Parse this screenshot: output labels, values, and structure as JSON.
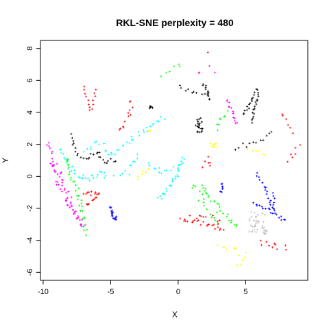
{
  "chart_data": {
    "type": "scatter",
    "title": "RKL-SNE perplexity = 480",
    "xlabel": "X",
    "ylabel": "Y",
    "xlim": [
      -10.2,
      9.6
    ],
    "ylim": [
      -6.5,
      8.5
    ],
    "xticks": [
      -10,
      -5,
      0,
      5
    ],
    "yticks": [
      -6,
      -4,
      -2,
      0,
      2,
      4,
      6,
      8
    ],
    "grid": false,
    "legend": "none",
    "point_shape": "plus",
    "clusters": [
      {
        "color": "#000000",
        "kind": "path",
        "pts": [
          [
            -8.0,
            2.6
          ],
          [
            -7.6,
            1.6
          ],
          [
            -7.2,
            1.2
          ],
          [
            -6.8,
            1.0
          ],
          [
            -6.4,
            1.2
          ],
          [
            -6.0,
            1.6
          ],
          [
            -5.7,
            1.2
          ],
          [
            -5.4,
            0.8
          ],
          [
            -5.0,
            1.0
          ],
          [
            -4.6,
            0.9
          ]
        ],
        "n": 28,
        "jitter": 0.08
      },
      {
        "color": "#000000",
        "kind": "path",
        "pts": [
          [
            0.0,
            5.6
          ],
          [
            0.4,
            5.4
          ],
          [
            1.2,
            5.3
          ],
          [
            2.2,
            5.1
          ]
        ],
        "n": 10,
        "jitter": 0.08
      },
      {
        "color": "#000000",
        "kind": "path",
        "pts": [
          [
            1.8,
            5.8
          ],
          [
            2.0,
            5.6
          ],
          [
            2.2,
            5.2
          ],
          [
            2.4,
            4.8
          ]
        ],
        "n": 12,
        "jitter": 0.05
      },
      {
        "color": "#000000",
        "kind": "blob",
        "center": [
          1.6,
          3.1
        ],
        "spread": [
          0.15,
          0.25
        ],
        "n": 22
      },
      {
        "color": "#000000",
        "kind": "blob",
        "center": [
          -2.1,
          4.3
        ],
        "spread": [
          0.1,
          0.05
        ],
        "n": 6
      },
      {
        "color": "#000000",
        "kind": "path",
        "pts": [
          [
            4.8,
            3.9
          ],
          [
            5.2,
            4.4
          ],
          [
            5.5,
            4.9
          ],
          [
            5.7,
            5.2
          ]
        ],
        "n": 14,
        "jitter": 0.05
      },
      {
        "color": "#000000",
        "kind": "path",
        "pts": [
          [
            5.5,
            3.4
          ],
          [
            5.6,
            4.0
          ],
          [
            5.8,
            4.6
          ],
          [
            5.9,
            5.1
          ],
          [
            5.9,
            5.5
          ]
        ],
        "n": 18,
        "jitter": 0.04
      },
      {
        "color": "#000000",
        "kind": "path",
        "pts": [
          [
            4.2,
            1.8
          ],
          [
            5.0,
            1.9
          ],
          [
            5.6,
            2.0
          ],
          [
            6.6,
            2.5
          ],
          [
            7.0,
            2.8
          ]
        ],
        "n": 12,
        "jitter": 0.08
      },
      {
        "color": "#00FFFF",
        "kind": "path",
        "pts": [
          [
            -8.8,
            1.7
          ],
          [
            -8.2,
            0.9
          ],
          [
            -7.8,
            0.4
          ],
          [
            -7.4,
            0.0
          ],
          [
            -7.0,
            -0.1
          ],
          [
            -6.5,
            0.0
          ],
          [
            -6.0,
            0.0
          ],
          [
            -5.6,
            0.2
          ],
          [
            -5.2,
            -0.1
          ]
        ],
        "n": 34,
        "jitter": 0.1
      },
      {
        "color": "#00FFFF",
        "kind": "path",
        "pts": [
          [
            -6.8,
            1.6
          ],
          [
            -6.4,
            1.9
          ],
          [
            -6.0,
            2.0
          ],
          [
            -5.4,
            1.7
          ],
          [
            -4.8,
            1.3
          ],
          [
            -4.2,
            1.7
          ],
          [
            -3.6,
            2.2
          ],
          [
            -3.0,
            2.6
          ],
          [
            -2.4,
            3.0
          ],
          [
            -1.6,
            3.4
          ],
          [
            -1.0,
            3.6
          ]
        ],
        "n": 36,
        "jitter": 0.1
      },
      {
        "color": "#00FFFF",
        "kind": "path",
        "pts": [
          [
            -4.4,
            0.0
          ],
          [
            -3.8,
            0.4
          ],
          [
            -3.2,
            0.8
          ],
          [
            -2.8,
            1.0
          ]
        ],
        "n": 10,
        "jitter": 0.15
      },
      {
        "color": "#00FFFF",
        "kind": "path",
        "pts": [
          [
            -1.4,
            -1.4
          ],
          [
            -0.8,
            -0.8
          ],
          [
            -0.3,
            -0.2
          ],
          [
            0.0,
            0.3
          ],
          [
            0.2,
            0.8
          ],
          [
            0.4,
            1.1
          ]
        ],
        "n": 26,
        "jitter": 0.08
      },
      {
        "color": "#00FFFF",
        "kind": "path",
        "pts": [
          [
            -2.2,
            0.8
          ],
          [
            -1.6,
            0.3
          ],
          [
            -1.0,
            0.3
          ],
          [
            -0.4,
            0.6
          ],
          [
            0.2,
            0.8
          ]
        ],
        "n": 14,
        "jitter": 0.1
      },
      {
        "color": "#FF00FF",
        "kind": "path",
        "pts": [
          [
            -9.6,
            2.1
          ],
          [
            -9.2,
            0.6
          ],
          [
            -8.8,
            -0.6
          ],
          [
            -8.4,
            -1.4
          ],
          [
            -7.9,
            -2.1
          ],
          [
            -7.4,
            -2.7
          ],
          [
            -7.0,
            -3.1
          ]
        ],
        "n": 40,
        "jitter": 0.1
      },
      {
        "color": "#FF00FF",
        "kind": "path",
        "pts": [
          [
            -9.2,
            0.9
          ],
          [
            -8.8,
            0.1
          ],
          [
            -8.4,
            -0.8
          ],
          [
            -8.0,
            -1.6
          ],
          [
            -7.6,
            -2.4
          ],
          [
            -7.2,
            -3.2
          ]
        ],
        "n": 26,
        "jitter": 0.1
      },
      {
        "color": "#FF00FF",
        "kind": "path",
        "pts": [
          [
            3.6,
            4.8
          ],
          [
            3.9,
            4.3
          ],
          [
            4.1,
            3.8
          ],
          [
            4.3,
            3.2
          ]
        ],
        "n": 14,
        "jitter": 0.06
      },
      {
        "color": "#FF00FF",
        "kind": "blob",
        "center": [
          2.0,
          6.6
        ],
        "spread": [
          0.6,
          0.2
        ],
        "n": 4
      },
      {
        "color": "#00FF00",
        "kind": "path",
        "pts": [
          [
            -8.4,
            1.2
          ],
          [
            -8.0,
            0.2
          ],
          [
            -7.6,
            -0.8
          ],
          [
            -7.3,
            -1.8
          ],
          [
            -7.0,
            -2.6
          ],
          [
            -6.8,
            -3.2
          ],
          [
            -6.7,
            -3.6
          ]
        ],
        "n": 32,
        "jitter": 0.12
      },
      {
        "color": "#00FF00",
        "kind": "path",
        "pts": [
          [
            1.2,
            -0.8
          ],
          [
            1.6,
            -0.6
          ],
          [
            2.1,
            -1.0
          ],
          [
            2.6,
            -1.6
          ],
          [
            3.2,
            -2.2
          ],
          [
            3.8,
            -2.6
          ],
          [
            4.4,
            -3.0
          ]
        ],
        "n": 28,
        "jitter": 0.12
      },
      {
        "color": "#00FF00",
        "kind": "path",
        "pts": [
          [
            1.6,
            -1.0
          ],
          [
            1.9,
            -1.8
          ],
          [
            2.4,
            -2.4
          ],
          [
            3.0,
            -2.8
          ]
        ],
        "n": 12,
        "jitter": 0.1
      },
      {
        "color": "#00FF00",
        "kind": "path",
        "pts": [
          [
            -1.2,
            6.4
          ],
          [
            -0.4,
            6.8
          ],
          [
            0.2,
            7.0
          ]
        ],
        "n": 6,
        "jitter": 0.1
      },
      {
        "color": "#00FF00",
        "kind": "path",
        "pts": [
          [
            2.8,
            3.0
          ],
          [
            3.2,
            3.6
          ],
          [
            3.6,
            4.0
          ]
        ],
        "n": 8,
        "jitter": 0.08
      },
      {
        "color": "#FF0000",
        "kind": "path",
        "pts": [
          [
            -7.0,
            5.6
          ],
          [
            -6.8,
            5.0
          ],
          [
            -6.6,
            4.5
          ],
          [
            -6.5,
            4.1
          ],
          [
            -6.3,
            4.6
          ],
          [
            -6.1,
            5.4
          ]
        ],
        "n": 14,
        "jitter": 0.05
      },
      {
        "color": "#FF0000",
        "kind": "path",
        "pts": [
          [
            -4.4,
            2.8
          ],
          [
            -3.9,
            3.3
          ],
          [
            -3.6,
            4.0
          ],
          [
            -3.5,
            4.8
          ]
        ],
        "n": 12,
        "jitter": 0.08
      },
      {
        "color": "#FF0000",
        "kind": "path",
        "pts": [
          [
            -7.0,
            -1.1
          ],
          [
            -6.6,
            -1.0
          ],
          [
            -6.2,
            -1.1
          ],
          [
            -5.9,
            -1.0
          ],
          [
            -6.2,
            -1.5
          ],
          [
            -6.6,
            -1.7
          ],
          [
            -6.9,
            -1.8
          ]
        ],
        "n": 20,
        "jitter": 0.08
      },
      {
        "color": "#FF0000",
        "kind": "path",
        "pts": [
          [
            0.2,
            -2.7
          ],
          [
            1.0,
            -2.8
          ],
          [
            1.8,
            -2.9
          ],
          [
            2.6,
            -3.1
          ],
          [
            3.4,
            -3.3
          ]
        ],
        "n": 22,
        "jitter": 0.08
      },
      {
        "color": "#FF0000",
        "kind": "path",
        "pts": [
          [
            1.0,
            -2.5
          ],
          [
            1.8,
            -2.4
          ],
          [
            2.6,
            -2.6
          ],
          [
            3.2,
            -3.0
          ]
        ],
        "n": 10,
        "jitter": 0.1
      },
      {
        "color": "#FF0000",
        "kind": "blob",
        "center": [
          2.1,
          0.9
        ],
        "spread": [
          0.12,
          0.25
        ],
        "n": 6
      },
      {
        "color": "#FF0000",
        "kind": "path",
        "pts": [
          [
            6.0,
            -4.1
          ],
          [
            6.6,
            -4.3
          ],
          [
            7.4,
            -4.3
          ],
          [
            8.0,
            -4.5
          ]
        ],
        "n": 10,
        "jitter": 0.15
      },
      {
        "color": "#FF0000",
        "kind": "path",
        "pts": [
          [
            7.6,
            3.9
          ],
          [
            8.1,
            3.3
          ],
          [
            8.6,
            2.8
          ]
        ],
        "n": 6,
        "jitter": 0.1
      },
      {
        "color": "#FF0000",
        "kind": "path",
        "pts": [
          [
            8.2,
            1.0
          ],
          [
            8.6,
            1.5
          ],
          [
            8.9,
            2.0
          ]
        ],
        "n": 6,
        "jitter": 0.1
      },
      {
        "color": "#FF0000",
        "kind": "blob",
        "center": [
          2.2,
          7.7
        ],
        "spread": [
          0.05,
          0.05
        ],
        "n": 1
      },
      {
        "color": "#0000FF",
        "kind": "path",
        "pts": [
          [
            -5.0,
            -1.9
          ],
          [
            -4.9,
            -2.3
          ],
          [
            -4.8,
            -2.6
          ],
          [
            -4.6,
            -2.7
          ],
          [
            -4.6,
            -2.5
          ]
        ],
        "n": 18,
        "jitter": 0.04
      },
      {
        "color": "#0000FF",
        "kind": "path",
        "pts": [
          [
            3.3,
            -0.4
          ],
          [
            3.3,
            -0.7
          ],
          [
            3.2,
            -1.0
          ]
        ],
        "n": 8,
        "jitter": 0.05
      },
      {
        "color": "#0000FF",
        "kind": "path",
        "pts": [
          [
            5.8,
            0.2
          ],
          [
            6.2,
            -0.3
          ],
          [
            6.6,
            -1.0
          ],
          [
            6.9,
            -1.8
          ],
          [
            7.1,
            -2.2
          ]
        ],
        "n": 18,
        "jitter": 0.06
      },
      {
        "color": "#0000FF",
        "kind": "path",
        "pts": [
          [
            5.6,
            -1.7
          ],
          [
            6.1,
            -1.9
          ],
          [
            6.7,
            -2.1
          ],
          [
            7.2,
            -2.4
          ],
          [
            7.6,
            -2.6
          ],
          [
            8.0,
            -2.8
          ]
        ],
        "n": 18,
        "jitter": 0.06
      },
      {
        "color": "#0000FF",
        "kind": "path",
        "pts": [
          [
            7.0,
            -1.0
          ],
          [
            7.1,
            -1.4
          ],
          [
            7.1,
            -2.0
          ]
        ],
        "n": 6,
        "jitter": 0.04
      },
      {
        "color": "#FFFF00",
        "kind": "blob",
        "center": [
          2.6,
          1.9
        ],
        "spread": [
          0.12,
          0.1
        ],
        "n": 10
      },
      {
        "color": "#FFFF00",
        "kind": "blob",
        "center": [
          -2.1,
          2.9
        ],
        "spread": [
          0.06,
          0.08
        ],
        "n": 3
      },
      {
        "color": "#FFFF00",
        "kind": "path",
        "pts": [
          [
            -3.0,
            -0.1
          ],
          [
            -2.6,
            0.2
          ],
          [
            -2.2,
            0.4
          ]
        ],
        "n": 6,
        "jitter": 0.08
      },
      {
        "color": "#FFFF00",
        "kind": "path",
        "pts": [
          [
            5.2,
            1.6
          ],
          [
            5.8,
            1.5
          ],
          [
            6.5,
            1.3
          ]
        ],
        "n": 6,
        "jitter": 0.08
      },
      {
        "color": "#FFFF00",
        "kind": "path",
        "pts": [
          [
            3.0,
            -4.4
          ],
          [
            3.6,
            -4.5
          ],
          [
            4.2,
            -4.5
          ],
          [
            4.6,
            -4.8
          ]
        ],
        "n": 8,
        "jitter": 0.1
      },
      {
        "color": "#FFFF00",
        "kind": "path",
        "pts": [
          [
            4.4,
            -5.6
          ],
          [
            4.8,
            -5.2
          ],
          [
            5.0,
            -4.8
          ]
        ],
        "n": 5,
        "jitter": 0.08
      },
      {
        "color": "#BEBEBE",
        "kind": "blob",
        "center": [
          5.8,
          -2.9
        ],
        "spread": [
          0.4,
          0.4
        ],
        "n": 30
      },
      {
        "color": "#BEBEBE",
        "kind": "path",
        "pts": [
          [
            6.2,
            -3.2
          ],
          [
            6.4,
            -3.4
          ],
          [
            6.5,
            -3.6
          ]
        ],
        "n": 10,
        "jitter": 0.06
      }
    ]
  }
}
